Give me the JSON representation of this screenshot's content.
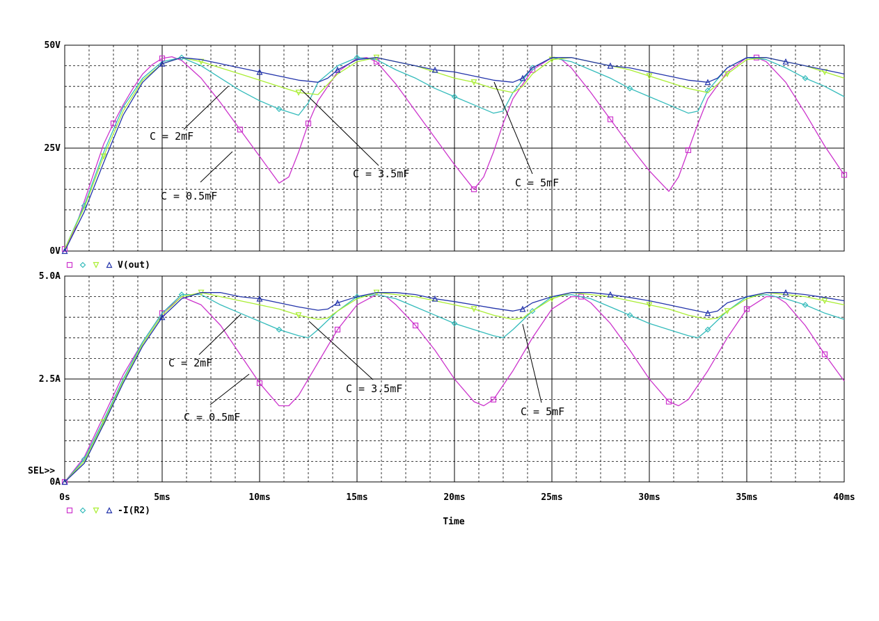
{
  "colors": {
    "c_0_5mF": "#cc33cc",
    "c_2mF": "#33bbbb",
    "c_3_5mF": "#aaee33",
    "c_5mF": "#2233aa",
    "grid": "#000000",
    "background": "#ffffff"
  },
  "chart_data": [
    {
      "type": "line",
      "title": "",
      "xlabel": "Time",
      "ylabel": "",
      "legend_label": "V(out)",
      "legend_markers": [
        "square",
        "diamond",
        "triangle-down",
        "triangle-up"
      ],
      "legend_position": "bottom-left",
      "grid": true,
      "xlim": [
        0,
        40
      ],
      "ylim": [
        0,
        50
      ],
      "yticks": [
        {
          "value": 0,
          "label": "0V"
        },
        {
          "value": 25,
          "label": "25V"
        },
        {
          "value": 50,
          "label": "50V"
        }
      ],
      "series": [
        {
          "color_key": "c_0_5mF",
          "marker": "square",
          "x": [
            0,
            0.5,
            1,
            1.5,
            2,
            2.5,
            3,
            3.5,
            4,
            4.5,
            5,
            5.5,
            6,
            7,
            8,
            9,
            10,
            11,
            11.5,
            12,
            12.5,
            13,
            14,
            15,
            15.5,
            16,
            17,
            18,
            19,
            20,
            21,
            21.5,
            22,
            22.5,
            23,
            24,
            25,
            25.5,
            26,
            27,
            28,
            29,
            30,
            31,
            31.5,
            32,
            32.5,
            33,
            34,
            35,
            35.5,
            36,
            37,
            38,
            39,
            40
          ],
          "y": [
            0.5,
            5,
            12,
            19,
            26,
            31,
            35.5,
            39.5,
            43,
            45.3,
            46.8,
            47.2,
            46.3,
            42,
            36,
            29.5,
            23,
            16.5,
            18,
            24,
            31,
            36.5,
            43.5,
            46.8,
            47,
            46,
            40.5,
            34,
            27.5,
            21,
            15,
            18,
            24,
            31,
            37,
            44,
            47,
            46.5,
            44.5,
            38.5,
            32,
            25.5,
            19.5,
            14.5,
            18,
            24.5,
            31,
            37,
            43.5,
            47,
            47,
            46,
            41,
            33.5,
            25.5,
            18.5
          ]
        },
        {
          "color_key": "c_2mF",
          "marker": "diamond",
          "x": [
            0,
            1,
            2,
            3,
            4,
            5,
            6,
            7,
            8,
            9,
            10,
            11,
            12,
            12.5,
            13,
            14,
            15,
            16,
            17,
            18,
            19,
            20,
            21,
            22,
            22.5,
            23,
            24,
            25,
            26,
            27,
            28,
            29,
            30,
            31,
            32,
            32.5,
            33,
            34,
            35,
            36,
            37,
            38,
            39,
            40
          ],
          "y": [
            0.5,
            11,
            24,
            35,
            42,
            46,
            47,
            45,
            42,
            39,
            36.5,
            34.5,
            33,
            36,
            41,
            45,
            47,
            46.5,
            44,
            42,
            39.5,
            37.5,
            35.5,
            33.5,
            34,
            38.5,
            44.5,
            47,
            46,
            44,
            42,
            39.5,
            37.5,
            35.5,
            33.5,
            34,
            39,
            44.5,
            47,
            46.5,
            44.5,
            42,
            40,
            37.5
          ]
        },
        {
          "color_key": "c_3_5mF",
          "marker": "triangle-down",
          "x": [
            0,
            1,
            2,
            3,
            4,
            5,
            6,
            7,
            8,
            9,
            10,
            11,
            12,
            13,
            13.5,
            14,
            15,
            16,
            17,
            18,
            19,
            20,
            21,
            22,
            23,
            23.5,
            24,
            25,
            26,
            27,
            28,
            29,
            30,
            31,
            32,
            33,
            33.5,
            34,
            35,
            36,
            37,
            38,
            39,
            40
          ],
          "y": [
            0.5,
            10.5,
            23,
            34,
            41.5,
            45.5,
            47,
            46,
            44.5,
            43,
            41.5,
            40,
            38.5,
            38,
            40.5,
            43,
            46,
            47,
            46,
            45,
            43.5,
            42,
            41,
            39.5,
            38.5,
            40,
            43,
            46.5,
            47,
            46,
            45,
            44,
            42.5,
            41,
            39.5,
            38.5,
            40.5,
            43,
            46.5,
            47,
            46,
            45,
            43.5,
            42
          ]
        },
        {
          "color_key": "c_5mF",
          "marker": "triangle-up",
          "x": [
            0,
            1,
            2,
            3,
            4,
            5,
            6,
            7,
            8,
            9,
            10,
            11,
            12,
            13,
            13.5,
            14,
            15,
            16,
            17,
            18,
            19,
            20,
            21,
            22,
            23,
            23.5,
            24,
            25,
            26,
            27,
            28,
            29,
            30,
            31,
            32,
            33,
            33.5,
            34,
            35,
            36,
            37,
            38,
            39,
            40
          ],
          "y": [
            0,
            9.5,
            21.5,
            33,
            41,
            45.5,
            47,
            46.5,
            45.5,
            44.5,
            43.5,
            42.5,
            41.5,
            41,
            42,
            44,
            46.5,
            47,
            46,
            45,
            44,
            43.5,
            42.5,
            41.5,
            41,
            42,
            44.5,
            47,
            47,
            46,
            45,
            44.5,
            43.5,
            42.5,
            41.5,
            41,
            42,
            44.5,
            47,
            47,
            46,
            45,
            44,
            43
          ]
        }
      ],
      "annotations": [
        {
          "text": "C = 2mF"
        },
        {
          "text": "C = 0.5mF"
        },
        {
          "text": "C = 3.5mF"
        },
        {
          "text": "C = 5mF"
        }
      ]
    },
    {
      "type": "line",
      "title": "",
      "xlabel": "Time",
      "ylabel": "",
      "legend_label": "-I(R2)",
      "legend_markers": [
        "square",
        "diamond",
        "triangle-down",
        "triangle-up"
      ],
      "legend_position": "bottom-left",
      "grid": true,
      "xlim": [
        0,
        40
      ],
      "ylim": [
        0,
        5
      ],
      "selection_label": "SEL>>",
      "yticks": [
        {
          "value": 0,
          "label": "0A"
        },
        {
          "value": 2.5,
          "label": "2.5A"
        },
        {
          "value": 5,
          "label": "5.0A"
        }
      ],
      "xticks": [
        {
          "value": 0,
          "label": "0s"
        },
        {
          "value": 5,
          "label": "5ms"
        },
        {
          "value": 10,
          "label": "10ms"
        },
        {
          "value": 15,
          "label": "15ms"
        },
        {
          "value": 20,
          "label": "20ms"
        },
        {
          "value": 25,
          "label": "25ms"
        },
        {
          "value": 30,
          "label": "30ms"
        },
        {
          "value": 35,
          "label": "35ms"
        },
        {
          "value": 40,
          "label": "40ms"
        }
      ],
      "series": [
        {
          "color_key": "c_0_5mF",
          "marker": "square",
          "x": [
            0,
            1,
            2,
            3,
            4,
            5,
            6,
            7,
            8,
            9,
            10,
            11,
            11.5,
            12,
            13,
            14,
            15,
            16,
            16.5,
            17,
            18,
            19,
            20,
            21,
            21.5,
            22,
            23,
            24,
            25,
            26,
            26.5,
            27,
            28,
            29,
            30,
            31,
            31.5,
            32,
            33,
            34,
            35,
            36,
            36.5,
            37,
            38,
            39,
            40
          ],
          "y": [
            0,
            0.6,
            1.6,
            2.6,
            3.4,
            4.1,
            4.5,
            4.3,
            3.8,
            3.1,
            2.4,
            1.85,
            1.85,
            2.1,
            2.9,
            3.7,
            4.3,
            4.55,
            4.5,
            4.3,
            3.8,
            3.2,
            2.5,
            1.95,
            1.85,
            2.0,
            2.7,
            3.5,
            4.2,
            4.5,
            4.5,
            4.35,
            3.85,
            3.2,
            2.5,
            1.95,
            1.85,
            2.0,
            2.7,
            3.5,
            4.2,
            4.5,
            4.5,
            4.35,
            3.8,
            3.1,
            2.45
          ]
        },
        {
          "color_key": "c_2mF",
          "marker": "diamond",
          "x": [
            0,
            1,
            2,
            3,
            4,
            5,
            6,
            7,
            8,
            9,
            10,
            11,
            12,
            12.5,
            13,
            14,
            15,
            16,
            17,
            18,
            19,
            20,
            21,
            22,
            22.5,
            23,
            24,
            25,
            26,
            27,
            28,
            29,
            30,
            31,
            32,
            32.5,
            33,
            34,
            35,
            36,
            37,
            38,
            39,
            40
          ],
          "y": [
            0,
            0.55,
            1.5,
            2.5,
            3.4,
            4.1,
            4.55,
            4.55,
            4.3,
            4.1,
            3.9,
            3.7,
            3.55,
            3.5,
            3.7,
            4.15,
            4.5,
            4.55,
            4.45,
            4.25,
            4.05,
            3.85,
            3.7,
            3.55,
            3.5,
            3.7,
            4.15,
            4.5,
            4.55,
            4.45,
            4.25,
            4.05,
            3.85,
            3.7,
            3.55,
            3.5,
            3.7,
            4.15,
            4.5,
            4.55,
            4.45,
            4.3,
            4.1,
            3.95
          ]
        },
        {
          "color_key": "c_3_5mF",
          "marker": "triangle-down",
          "x": [
            0,
            1,
            2,
            3,
            4,
            5,
            6,
            7,
            8,
            9,
            10,
            11,
            12,
            13,
            13.5,
            14,
            15,
            16,
            17,
            18,
            19,
            20,
            21,
            22,
            23,
            23.5,
            24,
            25,
            26,
            27,
            28,
            29,
            30,
            31,
            32,
            33,
            33.5,
            34,
            35,
            36,
            37,
            38,
            39,
            40
          ],
          "y": [
            0,
            0.5,
            1.45,
            2.45,
            3.35,
            4.05,
            4.5,
            4.6,
            4.5,
            4.4,
            4.3,
            4.2,
            4.05,
            3.95,
            3.98,
            4.15,
            4.45,
            4.6,
            4.55,
            4.5,
            4.4,
            4.3,
            4.2,
            4.05,
            3.95,
            3.98,
            4.15,
            4.45,
            4.6,
            4.55,
            4.5,
            4.4,
            4.3,
            4.2,
            4.05,
            3.95,
            3.98,
            4.15,
            4.45,
            4.6,
            4.55,
            4.5,
            4.4,
            4.3
          ]
        },
        {
          "color_key": "c_5mF",
          "marker": "triangle-up",
          "x": [
            0,
            1,
            2,
            3,
            4,
            5,
            6,
            7,
            8,
            9,
            10,
            11,
            12,
            13,
            13.5,
            14,
            15,
            16,
            17,
            18,
            19,
            20,
            21,
            22,
            23,
            23.5,
            24,
            25,
            26,
            27,
            28,
            29,
            30,
            31,
            32,
            33,
            33.5,
            34,
            35,
            36,
            37,
            38,
            39,
            40
          ],
          "y": [
            0,
            0.45,
            1.4,
            2.4,
            3.3,
            4.0,
            4.45,
            4.6,
            4.6,
            4.5,
            4.45,
            4.35,
            4.25,
            4.17,
            4.2,
            4.35,
            4.5,
            4.6,
            4.6,
            4.55,
            4.45,
            4.38,
            4.3,
            4.22,
            4.15,
            4.2,
            4.35,
            4.5,
            4.6,
            4.6,
            4.55,
            4.48,
            4.4,
            4.3,
            4.2,
            4.1,
            4.15,
            4.35,
            4.5,
            4.6,
            4.6,
            4.55,
            4.48,
            4.4
          ]
        }
      ],
      "annotations": [
        {
          "text": "C = 2mF"
        },
        {
          "text": "C = 0.5mF"
        },
        {
          "text": "C = 3.5mF"
        },
        {
          "text": "C = 5mF"
        }
      ]
    }
  ]
}
